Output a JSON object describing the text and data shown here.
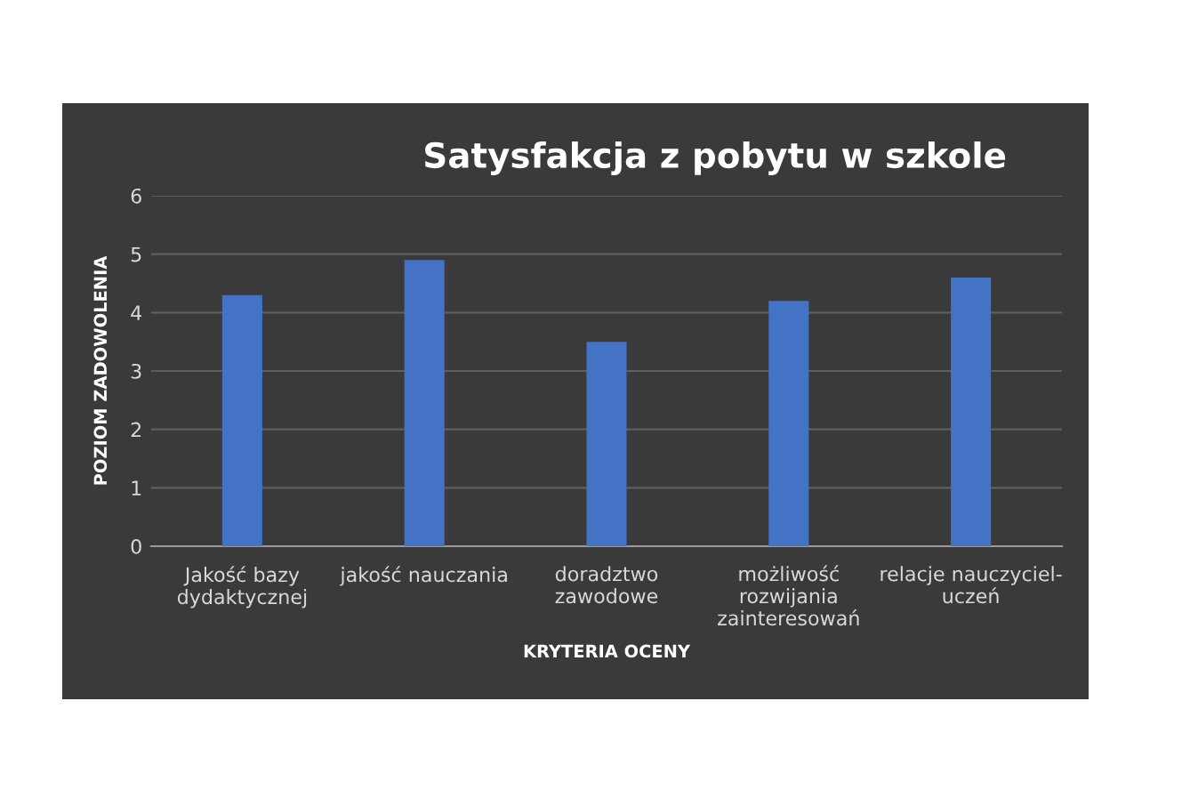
{
  "chart_data": {
    "type": "bar",
    "title": "Satysfakcja z pobytu w szkole",
    "xlabel": "KRYTERIA OCENY",
    "ylabel": "POZIOM ZADOWOLENIA",
    "categories": [
      "Jakość bazy\ndydaktycznej",
      "jakość nauczania",
      "doradztwo\nzawodowe",
      "możliwość\nrozwijania\nzainteresowań",
      "relacje nauczyciel-\nuczeń"
    ],
    "values": [
      4.3,
      4.9,
      3.5,
      4.2,
      4.6
    ],
    "color": "#4472c4",
    "ylim": [
      0,
      6
    ],
    "yticks": [
      0,
      1,
      2,
      3,
      4,
      5,
      6
    ],
    "grid": "y"
  }
}
